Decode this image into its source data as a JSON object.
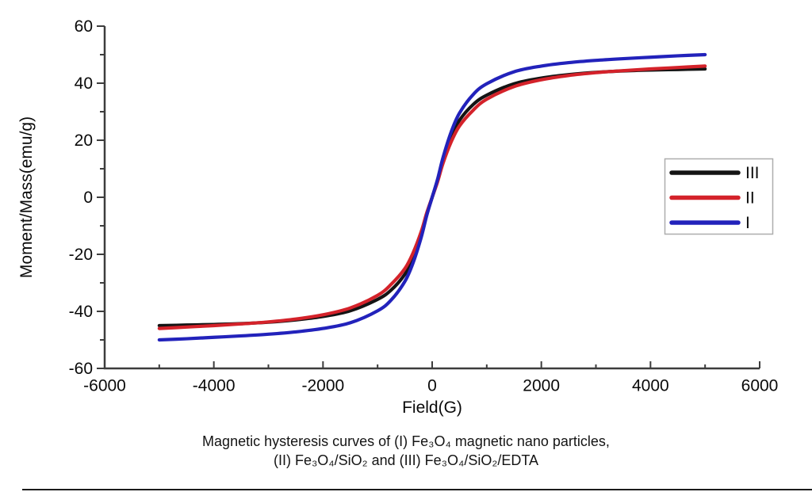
{
  "figure": {
    "caption_line1": "Magnetic hysteresis curves of (I) Fe₃O₄ magnetic nano particles,",
    "caption_line2": "(II) Fe₃O₄/SiO₂ and (III) Fe₃O₄/SiO₂/EDTA"
  },
  "legend": {
    "items": [
      {
        "label": "III",
        "color": "#141414"
      },
      {
        "label": "II",
        "color": "#d4222a"
      },
      {
        "label": "I",
        "color": "#2222bb"
      }
    ]
  },
  "chart_data": {
    "type": "line",
    "xlabel": "Field(G)",
    "ylabel": "Moment/Mass(emu/g)",
    "xlim": [
      -6000,
      6000
    ],
    "ylim": [
      -60,
      60
    ],
    "x_ticks": [
      -6000,
      -4000,
      -2000,
      0,
      2000,
      4000,
      6000
    ],
    "x_minor_ticks": [
      -5000,
      -3000,
      -1000,
      1000,
      3000,
      5000
    ],
    "y_ticks": [
      60,
      40,
      20,
      0,
      -20,
      -40,
      -60
    ],
    "y_minor_ticks": [
      50,
      30,
      10,
      -10,
      -30,
      -50
    ],
    "grid": false,
    "legend_position": "right",
    "x": [
      -5000,
      -4500,
      -4000,
      -3500,
      -3000,
      -2500,
      -2000,
      -1500,
      -1000,
      -750,
      -500,
      -350,
      -200,
      -100,
      0,
      100,
      200,
      350,
      500,
      750,
      1000,
      1500,
      2000,
      2500,
      3000,
      3500,
      4000,
      4500,
      5000
    ],
    "series": [
      {
        "name": "III",
        "color": "#141414",
        "values": [
          -45,
          -44.8,
          -44.6,
          -44.3,
          -43.8,
          -43,
          -41.8,
          -39.8,
          -35.8,
          -32.5,
          -27,
          -21.5,
          -13,
          -6,
          0,
          6,
          13,
          21.5,
          27,
          32.5,
          35.8,
          39.8,
          41.8,
          43,
          43.8,
          44.3,
          44.6,
          44.8,
          45
        ]
      },
      {
        "name": "II",
        "color": "#d4222a",
        "values": [
          -46,
          -45.5,
          -45,
          -44.4,
          -43.7,
          -42.7,
          -41.2,
          -38.8,
          -34.4,
          -30.5,
          -25,
          -19.5,
          -12,
          -5.5,
          0,
          5.5,
          12,
          19.5,
          25,
          30.5,
          34.4,
          38.8,
          41.2,
          42.7,
          43.7,
          44.4,
          45,
          45.5,
          46
        ]
      },
      {
        "name": "I",
        "color": "#2222bb",
        "values": [
          -50,
          -49.6,
          -49.1,
          -48.6,
          -48,
          -47.2,
          -46,
          -44,
          -39.8,
          -36,
          -29.5,
          -23,
          -14,
          -6.4,
          0,
          6.4,
          14,
          23,
          29.5,
          36,
          39.8,
          44,
          46,
          47.2,
          48,
          48.6,
          49.1,
          49.6,
          50
        ]
      }
    ]
  }
}
